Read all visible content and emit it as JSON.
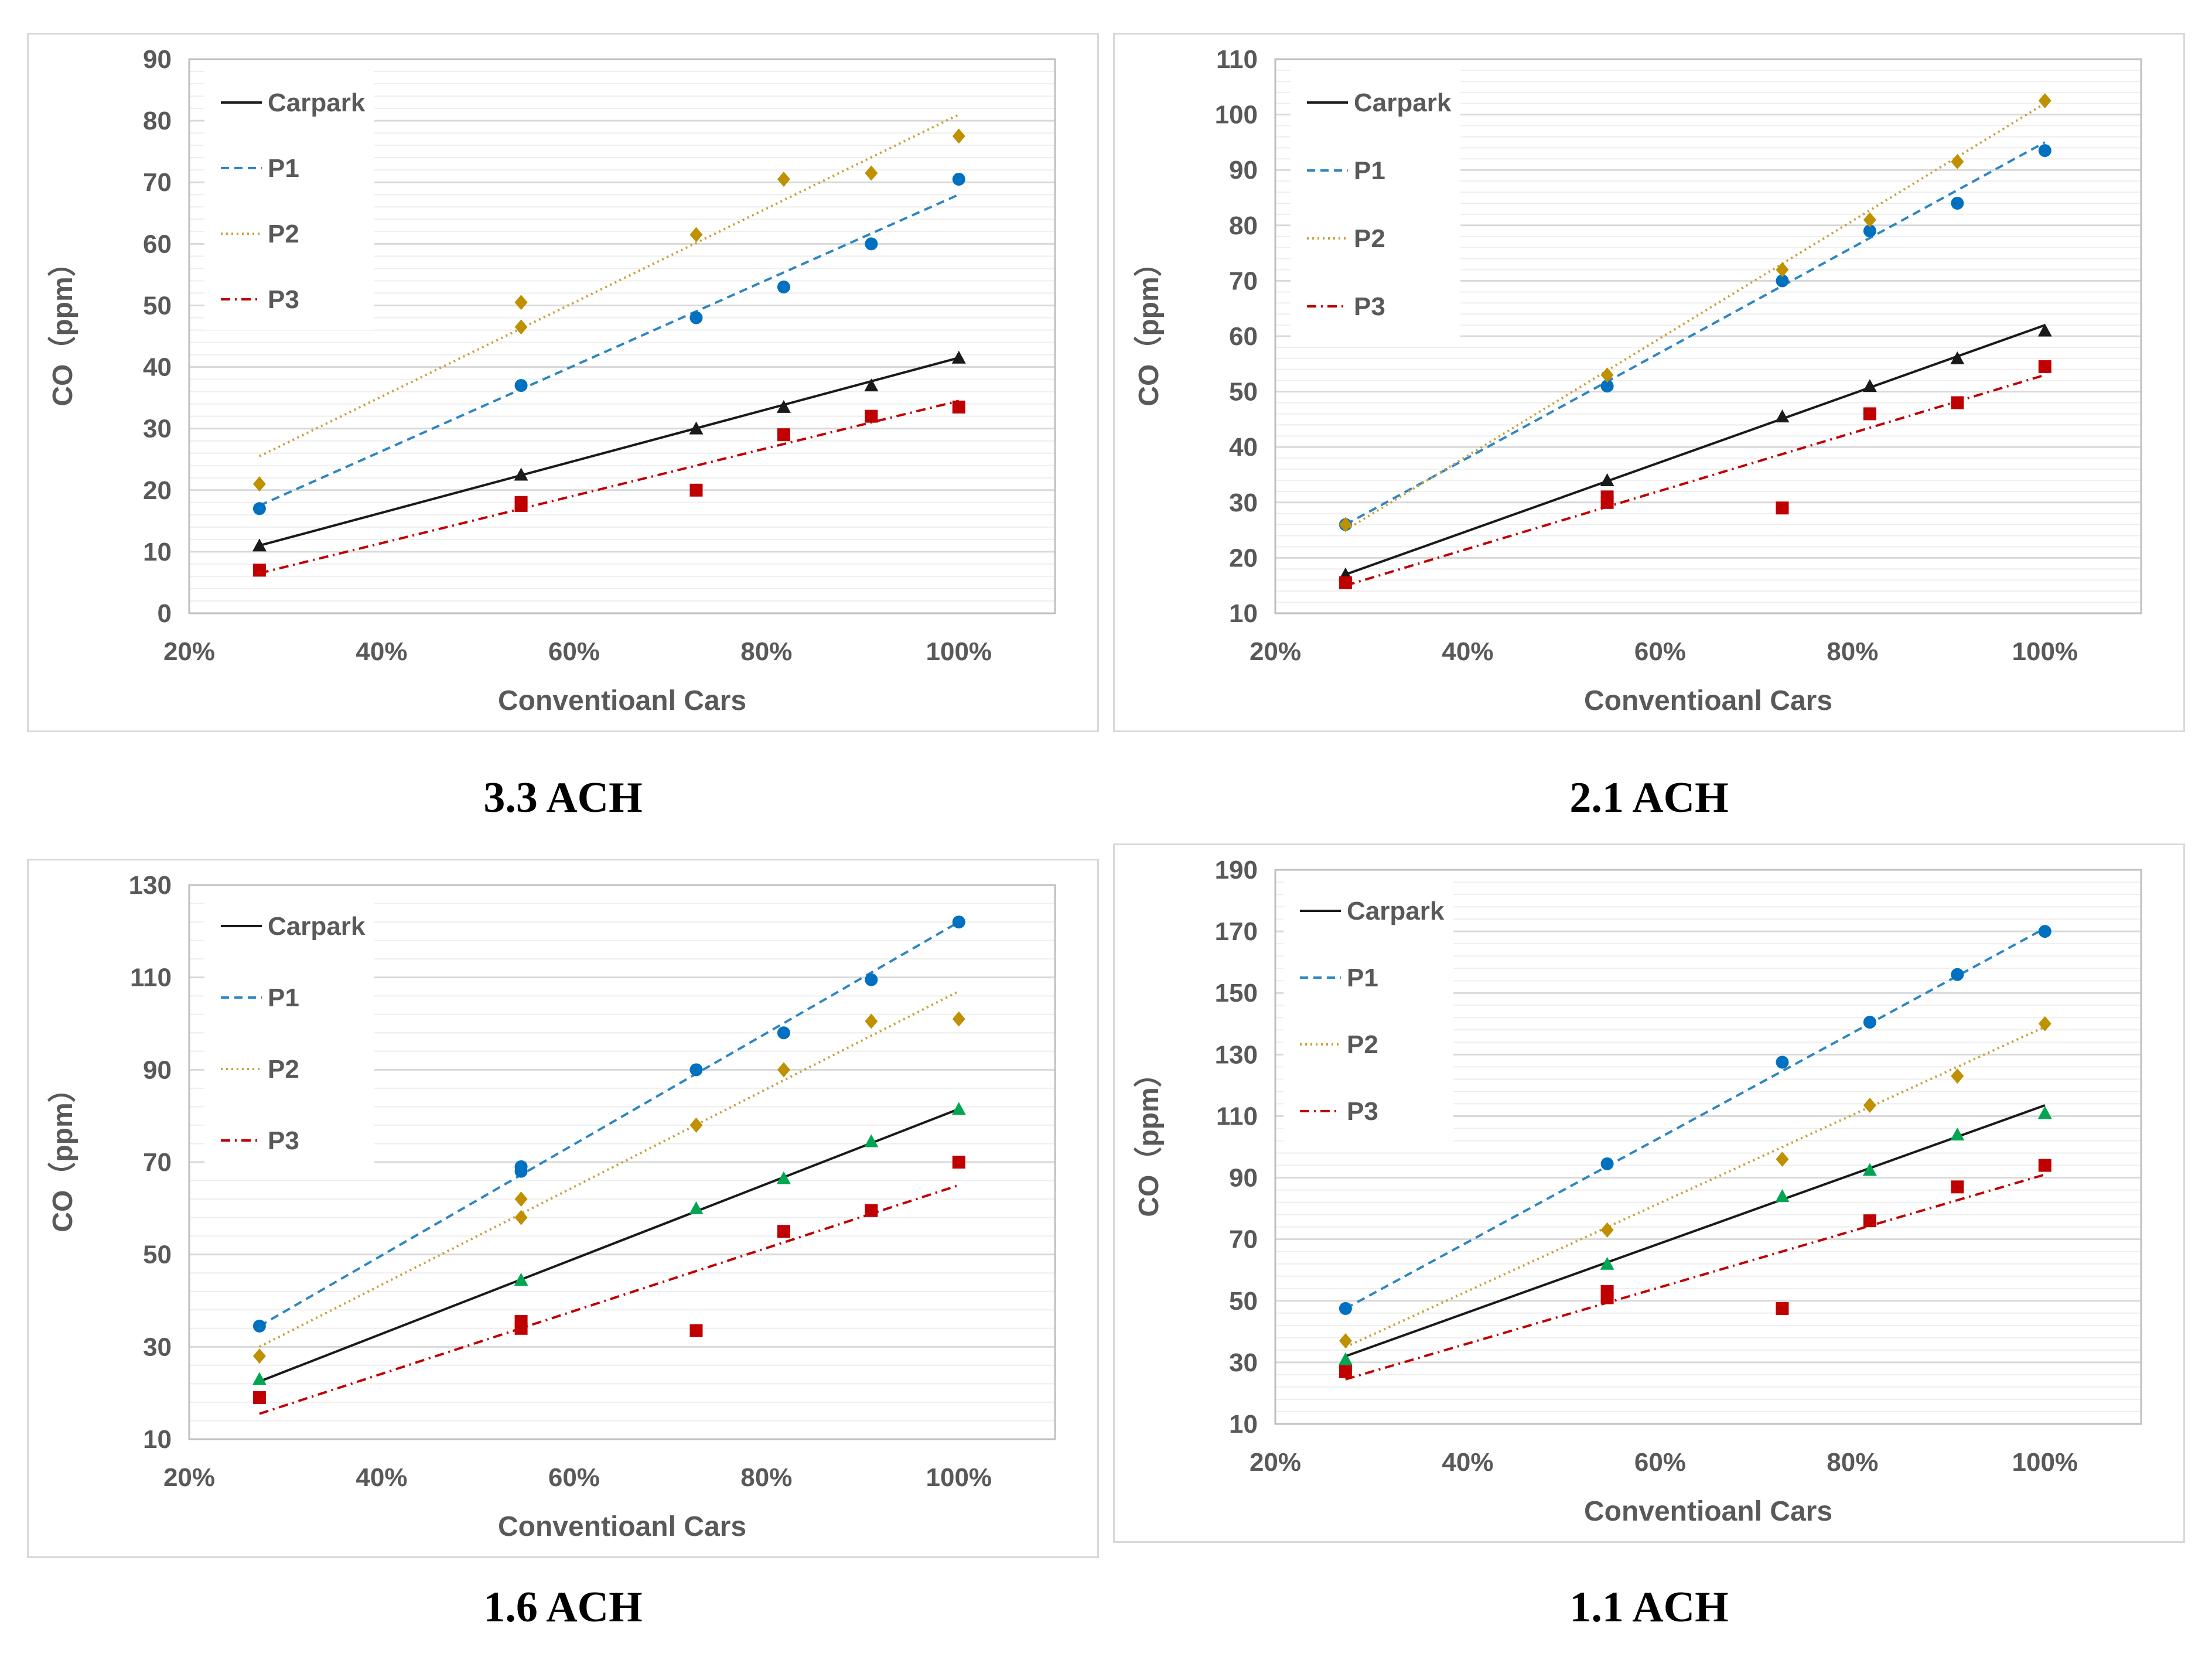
{
  "colors": {
    "carpark": "#1a1a1a",
    "p1": "#2e86c1",
    "p2": "#c9a03a",
    "p3": "#c00000",
    "p1_marker": "#0070c0",
    "p2_marker": "#bf9000",
    "p3_marker": "#c00000",
    "carpark_marker_green": "#00a651",
    "gridline": "#d9d9d9",
    "axis_text": "#595959"
  },
  "chart_data": [
    {
      "type": "scatter",
      "caption": "3.3 ACH",
      "xlabel": "Conventioanl Cars",
      "ylabel": "CO（ppm）",
      "xlim": [
        0.2,
        1.1
      ],
      "ylim": [
        0,
        90
      ],
      "xticks": [
        0.2,
        0.4,
        0.6,
        0.8,
        1.0
      ],
      "xtick_labels": [
        "20%",
        "40%",
        "60%",
        "80%",
        "100%"
      ],
      "yticks": [
        0,
        10,
        20,
        30,
        40,
        50,
        60,
        70,
        80,
        90
      ],
      "ytick_labels": [
        "0",
        "10",
        "20",
        "30",
        "40",
        "50",
        "60",
        "70",
        "80",
        "90"
      ],
      "legend": [
        "Carpark",
        "P1",
        "P2",
        "P3"
      ],
      "series": [
        {
          "name": "Carpark",
          "marker": "triangle",
          "color_key": "carpark",
          "line_style": "solid",
          "x": [
            0.273,
            0.545,
            0.727,
            0.818,
            0.909,
            1.0
          ],
          "y": [
            11,
            22.5,
            30,
            33.5,
            37,
            41.5
          ],
          "trend": [
            [
              0.273,
              11
            ],
            [
              1.0,
              41.5
            ]
          ]
        },
        {
          "name": "P1",
          "marker": "circle",
          "color_key": "p1",
          "line_style": "dashed",
          "x": [
            0.273,
            0.545,
            0.727,
            0.818,
            0.909,
            1.0
          ],
          "y": [
            17,
            37,
            48,
            53,
            60,
            70.5
          ],
          "trend": [
            [
              0.273,
              17.5
            ],
            [
              1.0,
              68
            ]
          ]
        },
        {
          "name": "P2",
          "marker": "diamond",
          "color_key": "p2",
          "line_style": "dotted",
          "x": [
            0.273,
            0.545,
            0.545,
            0.727,
            0.818,
            0.909,
            1.0
          ],
          "y": [
            21,
            50.5,
            46.5,
            61.5,
            70.5,
            71.5,
            77.5
          ],
          "trend": [
            [
              0.273,
              25.5
            ],
            [
              1.0,
              81
            ]
          ]
        },
        {
          "name": "P3",
          "marker": "square",
          "color_key": "p3",
          "line_style": "dashdot",
          "x": [
            0.273,
            0.545,
            0.545,
            0.727,
            0.818,
            0.909,
            1.0
          ],
          "y": [
            7,
            18,
            17.5,
            20,
            29,
            32,
            33.5
          ],
          "trend": [
            [
              0.273,
              6.5
            ],
            [
              1.0,
              34.5
            ]
          ]
        }
      ]
    },
    {
      "type": "scatter",
      "caption": "2.1 ACH",
      "xlabel": "Conventioanl Cars",
      "ylabel": "CO（ppm）",
      "xlim": [
        0.2,
        1.1
      ],
      "ylim": [
        10,
        110
      ],
      "xticks": [
        0.2,
        0.4,
        0.6,
        0.8,
        1.0
      ],
      "xtick_labels": [
        "20%",
        "40%",
        "60%",
        "80%",
        "100%"
      ],
      "yticks": [
        10,
        20,
        30,
        40,
        50,
        60,
        70,
        80,
        90,
        100,
        110
      ],
      "ytick_labels": [
        "10",
        "20",
        "30",
        "40",
        "50",
        "60",
        "70",
        "80",
        "90",
        "100",
        "110"
      ],
      "legend": [
        "Carpark",
        "P1",
        "P2",
        "P3"
      ],
      "series": [
        {
          "name": "Carpark",
          "marker": "triangle",
          "color_key": "carpark",
          "line_style": "solid",
          "x": [
            0.273,
            0.545,
            0.727,
            0.818,
            0.909,
            1.0
          ],
          "y": [
            17,
            34,
            45.5,
            51,
            56,
            61
          ],
          "trend": [
            [
              0.273,
              17
            ],
            [
              1.0,
              62
            ]
          ]
        },
        {
          "name": "P1",
          "marker": "circle",
          "color_key": "p1",
          "line_style": "dashed",
          "x": [
            0.273,
            0.545,
            0.727,
            0.818,
            0.909,
            1.0
          ],
          "y": [
            26,
            51,
            70,
            79,
            84,
            93.5
          ],
          "trend": [
            [
              0.273,
              26
            ],
            [
              1.0,
              95
            ]
          ]
        },
        {
          "name": "P2",
          "marker": "diamond",
          "color_key": "p2",
          "line_style": "dotted",
          "x": [
            0.273,
            0.545,
            0.727,
            0.818,
            0.909,
            1.0
          ],
          "y": [
            26,
            53,
            72,
            81,
            91.5,
            102.5
          ],
          "trend": [
            [
              0.273,
              25
            ],
            [
              1.0,
              102
            ]
          ]
        },
        {
          "name": "P3",
          "marker": "square",
          "color_key": "p3",
          "line_style": "dashdot",
          "x": [
            0.273,
            0.545,
            0.545,
            0.727,
            0.818,
            0.909,
            1.0
          ],
          "y": [
            15.5,
            31,
            30,
            29,
            46,
            48,
            54.5
          ],
          "trend": [
            [
              0.273,
              15
            ],
            [
              1.0,
              53
            ]
          ]
        }
      ]
    },
    {
      "type": "scatter",
      "caption": "1.6 ACH",
      "xlabel": "Conventioanl Cars",
      "ylabel": "CO（ppm）",
      "xlim": [
        0.2,
        1.1
      ],
      "ylim": [
        10,
        130
      ],
      "xticks": [
        0.2,
        0.4,
        0.6,
        0.8,
        1.0
      ],
      "xtick_labels": [
        "20%",
        "40%",
        "60%",
        "80%",
        "100%"
      ],
      "yticks": [
        10,
        30,
        50,
        70,
        90,
        110,
        130
      ],
      "ytick_labels": [
        "10",
        "30",
        "50",
        "70",
        "90",
        "110",
        "130"
      ],
      "legend": [
        "Carpark",
        "P1",
        "P2",
        "P3"
      ],
      "series": [
        {
          "name": "Carpark",
          "marker": "triangle",
          "color_key": "carpark",
          "marker_color_key": "carpark_marker_green",
          "line_style": "solid",
          "x": [
            0.273,
            0.545,
            0.727,
            0.818,
            0.909,
            1.0
          ],
          "y": [
            23,
            44.5,
            60,
            66.5,
            74.5,
            81.5
          ],
          "trend": [
            [
              0.273,
              22.5
            ],
            [
              1.0,
              81.5
            ]
          ]
        },
        {
          "name": "P1",
          "marker": "circle",
          "color_key": "p1",
          "line_style": "dashed",
          "x": [
            0.273,
            0.545,
            0.545,
            0.727,
            0.818,
            0.909,
            1.0
          ],
          "y": [
            34.5,
            69,
            68,
            90,
            98,
            109.5,
            122
          ],
          "trend": [
            [
              0.273,
              34.5
            ],
            [
              1.0,
              122
            ]
          ]
        },
        {
          "name": "P2",
          "marker": "diamond",
          "color_key": "p2",
          "line_style": "dotted",
          "x": [
            0.273,
            0.545,
            0.545,
            0.727,
            0.818,
            0.909,
            1.0
          ],
          "y": [
            28,
            62,
            58,
            78,
            90,
            100.5,
            101
          ],
          "trend": [
            [
              0.273,
              30
            ],
            [
              1.0,
              107
            ]
          ]
        },
        {
          "name": "P3",
          "marker": "square",
          "color_key": "p3",
          "line_style": "dashdot",
          "x": [
            0.273,
            0.545,
            0.545,
            0.727,
            0.818,
            0.909,
            1.0
          ],
          "y": [
            19,
            35.5,
            34,
            33.5,
            55,
            59.5,
            70
          ],
          "trend": [
            [
              0.273,
              15.5
            ],
            [
              1.0,
              65
            ]
          ]
        }
      ]
    },
    {
      "type": "scatter",
      "caption": "1.1 ACH",
      "xlabel": "Conventioanl Cars",
      "ylabel": "CO（ppm）",
      "xlim": [
        0.2,
        1.1
      ],
      "ylim": [
        10,
        190
      ],
      "xticks": [
        0.2,
        0.4,
        0.6,
        0.8,
        1.0
      ],
      "xtick_labels": [
        "20%",
        "40%",
        "60%",
        "80%",
        "100%"
      ],
      "yticks": [
        10,
        30,
        50,
        70,
        90,
        110,
        130,
        150,
        170,
        190
      ],
      "ytick_labels": [
        "10",
        "30",
        "50",
        "70",
        "90",
        "110",
        "130",
        "150",
        "170",
        "190"
      ],
      "legend": [
        "Carpark",
        "P1",
        "P2",
        "P3"
      ],
      "series": [
        {
          "name": "Carpark",
          "marker": "triangle",
          "color_key": "carpark",
          "marker_color_key": "carpark_marker_green",
          "line_style": "solid",
          "x": [
            0.273,
            0.545,
            0.727,
            0.818,
            0.909,
            1.0
          ],
          "y": [
            31,
            62,
            84,
            92.5,
            104,
            111
          ],
          "trend": [
            [
              0.273,
              32
            ],
            [
              1.0,
              113.5
            ]
          ]
        },
        {
          "name": "P1",
          "marker": "circle",
          "color_key": "p1",
          "line_style": "dashed",
          "x": [
            0.273,
            0.545,
            0.727,
            0.818,
            0.909,
            1.0
          ],
          "y": [
            47.5,
            94.5,
            127.5,
            140.5,
            156,
            170
          ],
          "trend": [
            [
              0.273,
              47.5
            ],
            [
              1.0,
              171
            ]
          ]
        },
        {
          "name": "P2",
          "marker": "diamond",
          "color_key": "p2",
          "line_style": "dotted",
          "x": [
            0.273,
            0.545,
            0.727,
            0.818,
            0.909,
            1.0
          ],
          "y": [
            37,
            73,
            96,
            113.5,
            123,
            140
          ],
          "trend": [
            [
              0.273,
              35
            ],
            [
              1.0,
              139
            ]
          ]
        },
        {
          "name": "P3",
          "marker": "square",
          "color_key": "p3",
          "line_style": "dashdot",
          "x": [
            0.273,
            0.545,
            0.545,
            0.727,
            0.818,
            0.909,
            1.0
          ],
          "y": [
            27,
            53,
            51,
            47.5,
            76,
            87,
            94
          ],
          "trend": [
            [
              0.273,
              24.5
            ],
            [
              1.0,
              91
            ]
          ]
        }
      ]
    }
  ]
}
